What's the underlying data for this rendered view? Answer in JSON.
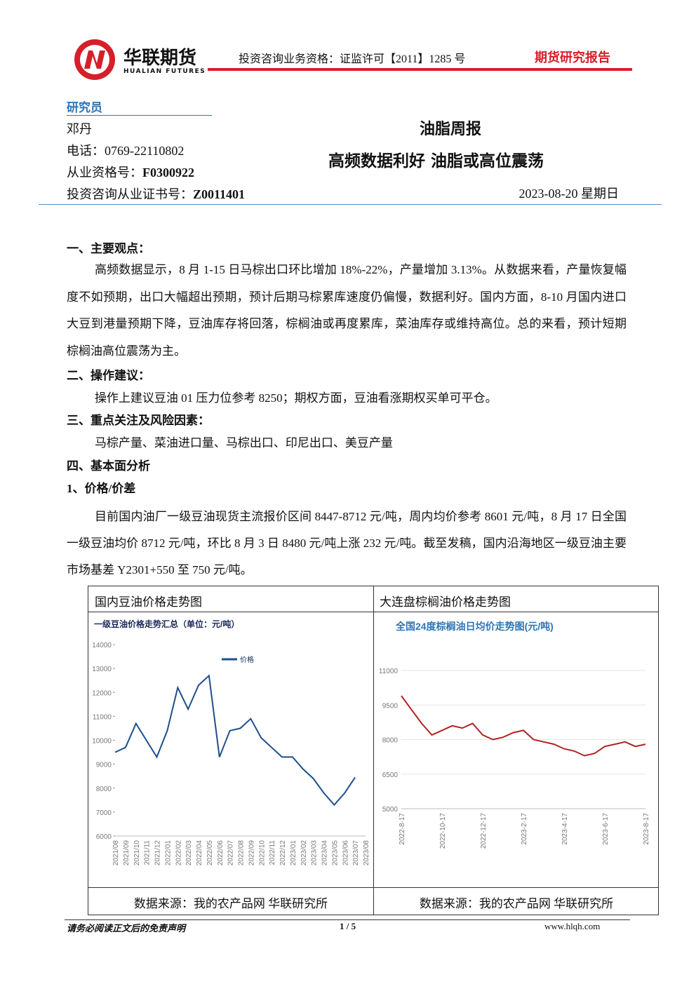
{
  "header": {
    "logo_cn": "华联期货",
    "logo_en": "HUALIAN FUTURES",
    "qualification": "投资咨询业务资格：证监许可【2011】1285 号",
    "report_type": "期货研究报告"
  },
  "researcher": {
    "heading": "研究员",
    "name": "邓丹",
    "phone": "电话：0769-22110802",
    "qualification": {
      "label": "从业资格号：",
      "value": "F0300922"
    },
    "certificate": {
      "label": "投资咨询从业证书号：",
      "value": "Z0011401"
    }
  },
  "report": {
    "title": "油脂周报",
    "subtitle": "高频数据利好 油脂或高位震荡",
    "date": "2023-08-20 星期日"
  },
  "sections": [
    {
      "heading": "一、主要观点：",
      "paragraph": "高频数据显示，8 月 1-15 日马棕出口环比增加 18%-22%，产量增加 3.13%。从数据来看，产量恢复幅度不如预期，出口大幅超出预期，预计后期马棕累库速度仍偏慢，数据利好。国内方面，8-10 月国内进口大豆到港量预期下降，豆油库存将回落，棕榈油或再度累库，菜油库存或维持高位。总的来看，预计短期棕榈油高位震荡为主。"
    },
    {
      "heading": "二、操作建议：",
      "paragraph": "操作上建议豆油 01 压力位参考 8250；期权方面，豆油看涨期权买单可平仓。"
    },
    {
      "heading": "三、重点关注及风险因素：",
      "paragraph": "马棕产量、菜油进口量、马棕出口、印尼出口、美豆产量"
    },
    {
      "heading": "四、基本面分析",
      "subheading": "1、价格/价差",
      "paragraph": "目前国内油厂一级豆油现货主流报价区间 8447-8712 元/吨，周内均价参考 8601 元/吨，8 月 17 日全国一级豆油均价 8712 元/吨，环比 8 月 3 日 8480 元/吨上涨 232 元/吨。截至发稿，国内沿海地区一级豆油主要市场基差 Y2301+550 至 750 元/吨。"
    }
  ],
  "figure": {
    "headers": [
      "国内豆油价格走势图",
      "大连盘棕榈油价格走势图"
    ],
    "sources": [
      "数据来源：我的农产品网 华联研究所",
      "数据来源：我的农产品网 华联研究所"
    ]
  },
  "chart_data": [
    {
      "type": "line",
      "title": "一级豆油价格走势汇总（单位：元/吨）",
      "categories": [
        "2021/08",
        "2021/09",
        "2021/10",
        "2021/11",
        "2021/12",
        "2022/01",
        "2022/02",
        "2022/03",
        "2022/04",
        "2022/05",
        "2022/06",
        "2022/07",
        "2022/08",
        "2022/09",
        "2022/10",
        "2022/11",
        "2022/12",
        "2023/01",
        "2023/02",
        "2023/03",
        "2023/04",
        "2023/05",
        "2023/06",
        "2023/07",
        "2023/08"
      ],
      "series": [
        {
          "name": "价格",
          "color": "#1f4e8c",
          "values": [
            9500,
            9700,
            10700,
            10000,
            9300,
            10400,
            12200,
            11300,
            12300,
            12700,
            9300,
            10400,
            10500,
            10900,
            10100,
            9700,
            9300,
            9300,
            8800,
            8400,
            7800,
            7300,
            7800,
            8450,
            null
          ]
        }
      ],
      "ylim": [
        6000,
        14000
      ],
      "yticks": [
        6000,
        7000,
        8000,
        9000,
        10000,
        11000,
        12000,
        13000,
        14000
      ],
      "grid": false
    },
    {
      "type": "line",
      "title": "全国24度棕榈油日均价走势图(元/吨)",
      "categories": [
        "2022-8-17",
        null,
        null,
        null,
        "2022-10-17",
        null,
        null,
        null,
        "2022-12-17",
        null,
        null,
        null,
        "2023-2-17",
        null,
        null,
        null,
        "2023-4-17",
        null,
        null,
        null,
        "2023-6-17",
        null,
        null,
        null,
        "2023-8-17"
      ],
      "series": [
        {
          "name": null,
          "color": "#b22222",
          "values": [
            9900,
            9300,
            8700,
            8200,
            8400,
            8600,
            8500,
            8700,
            8200,
            8000,
            8100,
            8300,
            8400,
            8000,
            7900,
            7800,
            7600,
            7500,
            7300,
            7400,
            7700,
            7800,
            7900,
            7700,
            7800
          ]
        }
      ],
      "ylim": [
        5000,
        11000
      ],
      "yticks": [
        5000,
        6500,
        8000,
        9500,
        11000
      ],
      "grid": true
    }
  ],
  "footer": {
    "disclaimer": "请务必阅读正文后的免责声明",
    "page": "1 / 5",
    "website": "www.hlqh.com"
  }
}
